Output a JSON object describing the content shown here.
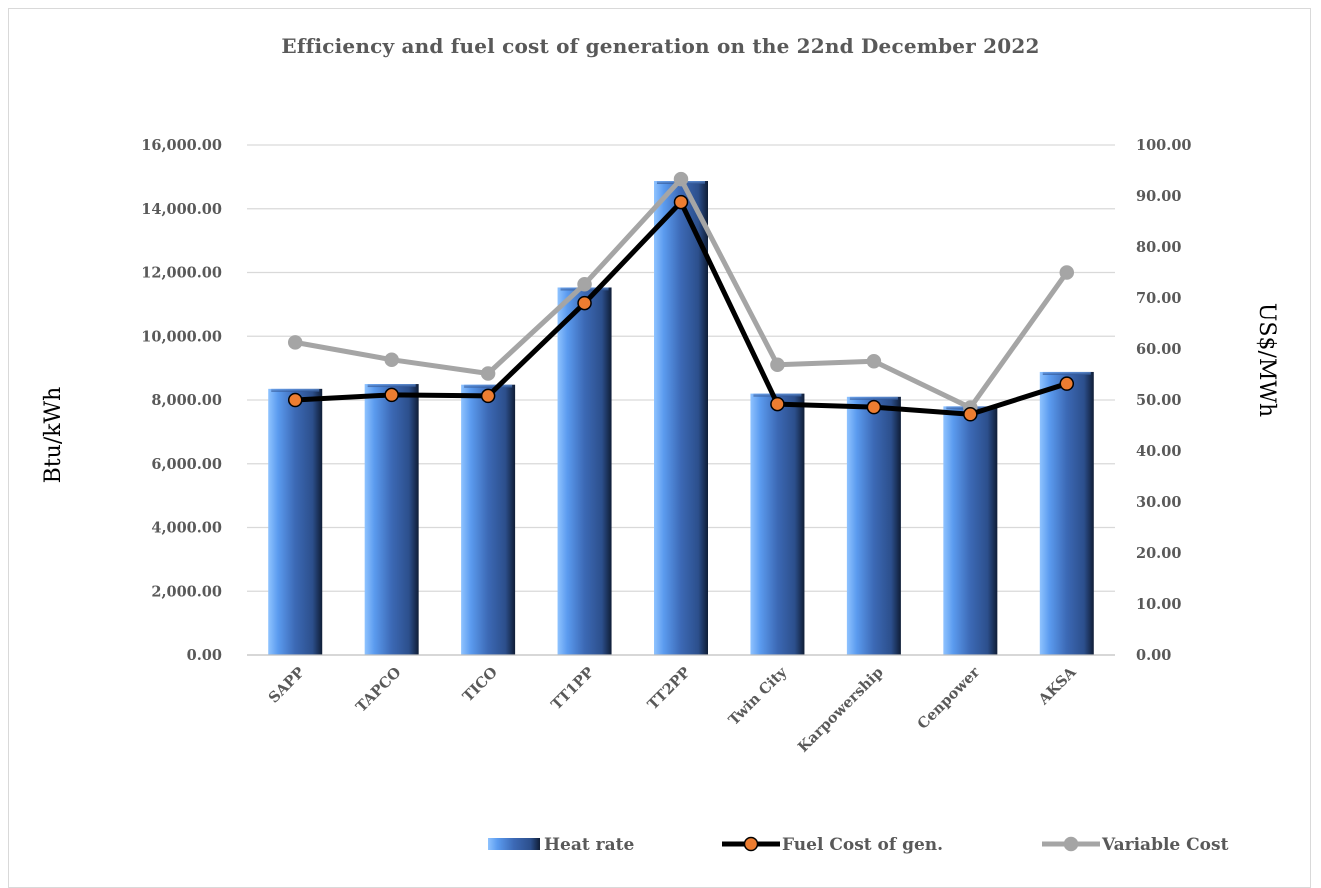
{
  "chart_data": {
    "type": "bar",
    "title": "Efficiency and fuel cost of generation on the 22nd December 2022",
    "categories": [
      "SAPP",
      "TAPCO",
      "TICO",
      "TT1PP",
      "TT2PP",
      "Twin City",
      "Karpowership",
      "Cenpower",
      "AKSA"
    ],
    "series": [
      {
        "name": "Heat rate",
        "type": "bar",
        "axis": "left",
        "color": "#3a64ad",
        "values": [
          8350,
          8500,
          8480,
          11530,
          14870,
          8200,
          8100,
          7800,
          8880
        ]
      },
      {
        "name": "Fuel Cost of gen.",
        "type": "line",
        "axis": "right",
        "color": "#000000",
        "marker_color": "#ed7d31",
        "values": [
          50.0,
          51.0,
          50.8,
          69.0,
          88.8,
          49.2,
          48.6,
          47.2,
          53.2
        ]
      },
      {
        "name": "Variable Cost",
        "type": "line",
        "axis": "right",
        "color": "#a5a5a5",
        "marker_color": "#a5a5a5",
        "values": [
          61.3,
          57.9,
          55.2,
          72.7,
          93.3,
          56.9,
          57.6,
          48.5,
          75.0
        ]
      }
    ],
    "ylabel_left": "Btu/kWh",
    "ylabel_right": "US$/MWh",
    "ylim_left": [
      0,
      16000
    ],
    "ylim_right": [
      0,
      100
    ],
    "yticks_left": [
      "0.00",
      "2,000.00",
      "4,000.00",
      "6,000.00",
      "8,000.00",
      "10,000.00",
      "12,000.00",
      "14,000.00",
      "16,000.00"
    ],
    "yticks_right": [
      "0.00",
      "10.00",
      "20.00",
      "30.00",
      "40.00",
      "50.00",
      "60.00",
      "70.00",
      "80.00",
      "90.00",
      "100.00"
    ],
    "grid": "horizontal",
    "legend_position": "bottom"
  }
}
